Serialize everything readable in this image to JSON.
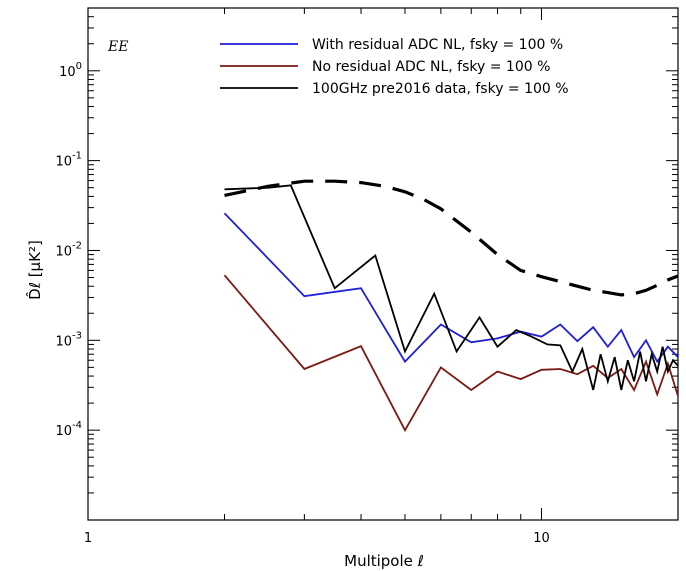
{
  "chart_data": {
    "type": "line",
    "panel_tag": "EE",
    "xlabel": "Multipole ℓ",
    "ylabel": "D̂ℓ [μK²]",
    "xscale": "log",
    "yscale": "log",
    "xlim": [
      1,
      20
    ],
    "ylim": [
      1e-05,
      5
    ],
    "x_tick_labels": [
      {
        "value": 1,
        "label": "1"
      },
      {
        "value": 10,
        "label": "10"
      }
    ],
    "y_tick_labels": [
      {
        "value": 1,
        "base": "10",
        "exp": "0"
      },
      {
        "value": 0.1,
        "base": "10",
        "exp": "-1"
      },
      {
        "value": 0.01,
        "base": "10",
        "exp": "-2"
      },
      {
        "value": 0.001,
        "base": "10",
        "exp": "-3"
      },
      {
        "value": 0.0001,
        "base": "10",
        "exp": "-4"
      }
    ],
    "legend_position": "top-right",
    "series": [
      {
        "name": "With residual ADC NL, fsky = 100 %",
        "color": "#1f1fd6",
        "style": "solid",
        "in_legend": true,
        "x": [
          2,
          3,
          4,
          5,
          6,
          7,
          8,
          9,
          10,
          11,
          12,
          13,
          14,
          15,
          16,
          17,
          18,
          19,
          20
        ],
        "y": [
          0.026,
          0.0031,
          0.0038,
          0.00058,
          0.0015,
          0.00095,
          0.00105,
          0.00125,
          0.0011,
          0.0015,
          0.00098,
          0.0014,
          0.00085,
          0.0013,
          0.00065,
          0.001,
          0.00058,
          0.00085,
          0.00065
        ]
      },
      {
        "name": "No residual ADC NL, fsky = 100 %",
        "color": "#7a1a12",
        "style": "solid",
        "in_legend": true,
        "x": [
          2,
          3,
          4,
          5,
          6,
          7,
          8,
          9,
          10,
          11,
          12,
          13,
          14,
          15,
          16,
          17,
          18,
          19,
          20
        ],
        "y": [
          0.0053,
          0.00048,
          0.00086,
          0.0001,
          0.0005,
          0.00028,
          0.00045,
          0.00037,
          0.00047,
          0.00048,
          0.00042,
          0.00052,
          0.00038,
          0.00048,
          0.00028,
          0.00058,
          0.00025,
          0.00055,
          0.00024
        ]
      },
      {
        "name": "100GHz pre2016 data, fsky = 100 %",
        "color": "#000000",
        "style": "solid",
        "in_legend": true,
        "x": [
          2,
          2.5,
          2.8,
          3.5,
          4.3,
          5,
          5.8,
          6.5,
          7.3,
          8,
          8.8,
          9.5,
          10.3,
          11,
          11.7,
          12.3,
          13,
          13.5,
          14,
          14.5,
          15,
          15.5,
          16,
          16.5,
          17,
          17.5,
          18,
          18.5,
          19,
          19.5,
          20
        ],
        "y": [
          0.048,
          0.05,
          0.053,
          0.0038,
          0.0088,
          0.00075,
          0.0033,
          0.00075,
          0.0018,
          0.00085,
          0.0013,
          0.0011,
          0.0009,
          0.00088,
          0.00045,
          0.0008,
          0.00028,
          0.0007,
          0.00035,
          0.00065,
          0.00028,
          0.0006,
          0.00035,
          0.00075,
          0.00035,
          0.0007,
          0.00045,
          0.00085,
          0.00045,
          0.0006,
          0.00052
        ]
      },
      {
        "name": "",
        "color": "#000000",
        "style": "dashed",
        "in_legend": false,
        "x": [
          2,
          2.5,
          3,
          3.5,
          4,
          4.5,
          5,
          5.5,
          6,
          7,
          8,
          9,
          10,
          11,
          12,
          13,
          14,
          15,
          16,
          17,
          18,
          19,
          20
        ],
        "y": [
          0.041,
          0.052,
          0.059,
          0.059,
          0.057,
          0.052,
          0.045,
          0.037,
          0.029,
          0.016,
          0.009,
          0.006,
          0.0051,
          0.0045,
          0.004,
          0.0036,
          0.0034,
          0.0032,
          0.0033,
          0.0036,
          0.0041,
          0.0047,
          0.0052
        ]
      }
    ]
  }
}
